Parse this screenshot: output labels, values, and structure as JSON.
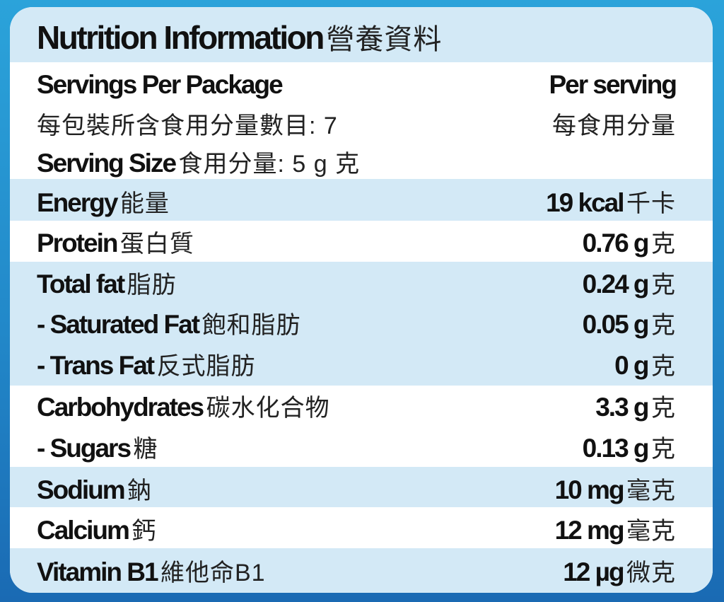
{
  "title": {
    "en": "Nutrition Information",
    "zh": "營養資料"
  },
  "header": {
    "servings_per_package_en": "Servings Per Package",
    "servings_per_package_zh": "每包裝所含食用分量數目: 7",
    "serving_size_en": "Serving Size",
    "serving_size_zh": "食用分量: 5 g 克",
    "per_serving_en": "Per serving",
    "per_serving_zh": "每食用分量"
  },
  "rows": [
    {
      "en": "Energy",
      "zh": "能量",
      "value": "19 kcal",
      "unit_zh": "千卡"
    },
    {
      "en": "Protein",
      "zh": "蛋白質",
      "value": "0.76 g",
      "unit_zh": "克"
    },
    {
      "en": "Total fat",
      "zh": "脂肪",
      "value": "0.24 g",
      "unit_zh": "克"
    },
    {
      "en": "- Saturated Fat",
      "zh": "飽和脂肪",
      "value": "0.05 g",
      "unit_zh": "克"
    },
    {
      "en": "- Trans Fat",
      "zh": "反式脂肪",
      "value": "0 g",
      "unit_zh": "克"
    },
    {
      "en": "Carbohydrates",
      "zh": "碳水化合物",
      "value": "3.3 g",
      "unit_zh": "克"
    },
    {
      "en": "- Sugars",
      "zh": "糖",
      "value": "0.13 g",
      "unit_zh": "克"
    },
    {
      "en": "Sodium",
      "zh": "鈉",
      "value": "10 mg",
      "unit_zh": "毫克"
    },
    {
      "en": "Calcium",
      "zh": "鈣",
      "value": "12 mg",
      "unit_zh": "毫克"
    },
    {
      "en": "Vitamin B1",
      "zh": "維他命B1",
      "value": "12 µg",
      "unit_zh": "微克"
    }
  ],
  "colors": {
    "band_light": "#d3e9f6",
    "background_blue": "#2288c9"
  }
}
